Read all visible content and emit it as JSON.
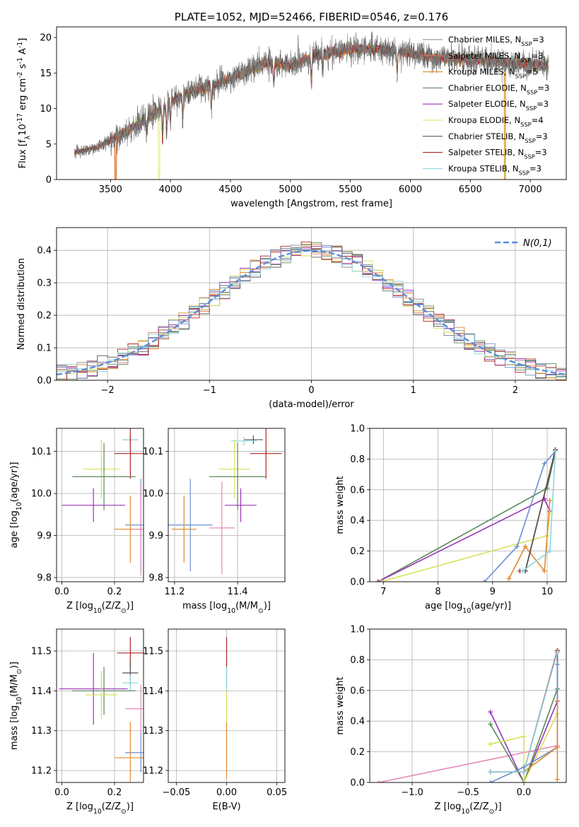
{
  "chart_data": [
    {
      "id": "spectrum",
      "type": "line",
      "title": "PLATE=1052, MJD=52466, FIBERID=0546, z=0.176",
      "xlabel": "wavelength [Angstrom, rest frame]",
      "ylabel": "Flux [f$_\\lambda$10$^{-17}$ erg cm$^{-2}$ s$^{-1}$ A$^{-1}$]",
      "xlim": [
        3050,
        7300
      ],
      "ylim": [
        0,
        21.5
      ],
      "xticks": [
        3500,
        4000,
        4500,
        5000,
        5500,
        6000,
        6500,
        7000
      ],
      "yticks": [
        0,
        5,
        10,
        15,
        20
      ],
      "grid": false,
      "legend_position": "top-right",
      "continuum": {
        "x": [
          3200,
          3400,
          3600,
          3800,
          4000,
          4200,
          4400,
          4600,
          4800,
          5000,
          5200,
          5400,
          5600,
          5800,
          6000,
          6200,
          6400,
          6600,
          6800,
          7000,
          7150
        ],
        "y": [
          3.8,
          4.6,
          6.5,
          8.5,
          11.0,
          12.6,
          13.5,
          15.0,
          16.5,
          16.0,
          17.5,
          18.0,
          18.5,
          18.2,
          17.8,
          17.2,
          17.0,
          16.8,
          16.5,
          16.2,
          16.0
        ]
      },
      "series": [
        {
          "name": "Chabrier MILES, N$_{SSP}$=3",
          "color": "#808080"
        },
        {
          "name": "Salpeter MILES, N$_{SSP}$=3",
          "color": "#e8734a"
        },
        {
          "name": "Kroupa MILES, N$_{SSP}$=5",
          "color": "#e08a2c"
        },
        {
          "name": "Chabrier ELODIE, N$_{SSP}$=3",
          "color": "#5b8a5b"
        },
        {
          "name": "Salpeter ELODIE, N$_{SSP}$=3",
          "color": "#9a32b8"
        },
        {
          "name": "Kroupa ELODIE, N$_{SSP}$=4",
          "color": "#d8e05a"
        },
        {
          "name": "Chabrier STELIB, N$_{SSP}$=3",
          "color": "#505050"
        },
        {
          "name": "Salpeter STELIB, N$_{SSP}$=3",
          "color": "#b22222"
        },
        {
          "name": "Kroupa STELIB, N$_{SSP}$=3",
          "color": "#8fd6e0"
        }
      ]
    },
    {
      "id": "residuals",
      "type": "histogram",
      "xlabel": "(data-model)/error",
      "ylabel": "Normed distribution",
      "xlim": [
        -2.5,
        2.5
      ],
      "ylim": [
        0,
        0.47
      ],
      "xticks": [
        -2,
        -1,
        0,
        1,
        2
      ],
      "yticks": [
        0.0,
        0.1,
        0.2,
        0.3,
        0.4
      ],
      "grid": true,
      "legend_position": "top-right",
      "reference_curve": {
        "name": "$\\mathcal{N}(0,1)$",
        "color": "#5b8fd9",
        "style": "dashed"
      },
      "bin_width": 0.1,
      "series_colors": [
        "#808080",
        "#e8734a",
        "#e08a2c",
        "#5b8a5b",
        "#9a32b8",
        "#d8e05a",
        "#505050",
        "#b22222",
        "#8fd6e0",
        "#6b8fd0"
      ]
    },
    {
      "id": "age_vs_Z",
      "type": "errorbar",
      "xlabel": "Z [log$_{10}$(Z/Z$_\\odot$)]",
      "ylabel": "age  [log$_{10}$(age/yr)]",
      "xlim": [
        -0.02,
        0.31
      ],
      "ylim": [
        9.79,
        10.155
      ],
      "xticks": [
        0.0,
        0.2
      ],
      "yticks": [
        9.8,
        9.9,
        10.0,
        10.1
      ],
      "grid": true,
      "points": [
        {
          "x": 0.26,
          "y": 10.128,
          "xerr": 0.03,
          "yerr": 0.01,
          "color": "#505050"
        },
        {
          "x": 0.26,
          "y": 10.128,
          "xerr": 0.03,
          "yerr": 0.01,
          "color": "#8fd6e0"
        },
        {
          "x": 0.26,
          "y": 10.095,
          "xerr": 0.06,
          "yerr": 0.06,
          "color": "#b22222"
        },
        {
          "x": 0.15,
          "y": 10.058,
          "xerr": 0.07,
          "yerr": 0.07,
          "color": "#d8e05a"
        },
        {
          "x": 0.16,
          "y": 10.04,
          "xerr": 0.12,
          "yerr": 0.08,
          "color": "#5b8a5b"
        },
        {
          "x": 0.12,
          "y": 9.972,
          "xerr": 0.12,
          "yerr": 0.04,
          "color": "#9a32b8"
        },
        {
          "x": 0.3,
          "y": 9.925,
          "xerr": 0.06,
          "yerr": 0.11,
          "color": "#6b8fd0"
        },
        {
          "x": 0.26,
          "y": 9.915,
          "xerr": 0.06,
          "yerr": 0.08,
          "color": "#e08a2c"
        },
        {
          "x": 0.3,
          "y": 9.915,
          "xerr": 0.03,
          "yerr": 0.11,
          "color": "#e888b8"
        }
      ]
    },
    {
      "id": "age_vs_mass",
      "type": "errorbar",
      "xlabel": "mass [log$_{10}$(M/M$_\\odot$)]",
      "xlim": [
        11.18,
        11.55
      ],
      "ylim": [
        9.79,
        10.155
      ],
      "xticks": [
        11.2,
        11.4
      ],
      "yticks": [
        9.8,
        9.9,
        10.0,
        10.1
      ],
      "grid": true,
      "points": [
        {
          "x": 11.45,
          "y": 10.128,
          "xerr": 0.03,
          "yerr": 0.01,
          "color": "#505050"
        },
        {
          "x": 11.42,
          "y": 10.125,
          "xerr": 0.04,
          "yerr": 0.01,
          "color": "#8fd6e0"
        },
        {
          "x": 11.49,
          "y": 10.095,
          "xerr": 0.05,
          "yerr": 0.06,
          "color": "#b22222"
        },
        {
          "x": 11.39,
          "y": 10.058,
          "xerr": 0.05,
          "yerr": 0.07,
          "color": "#d8e05a"
        },
        {
          "x": 11.4,
          "y": 10.04,
          "xerr": 0.09,
          "yerr": 0.08,
          "color": "#5b8a5b"
        },
        {
          "x": 11.41,
          "y": 9.972,
          "xerr": 0.05,
          "yerr": 0.04,
          "color": "#9a32b8"
        },
        {
          "x": 11.25,
          "y": 9.925,
          "xerr": 0.07,
          "yerr": 0.11,
          "color": "#6b8fd0"
        },
        {
          "x": 11.23,
          "y": 9.915,
          "xerr": 0.04,
          "yerr": 0.08,
          "color": "#e08a2c"
        },
        {
          "x": 11.35,
          "y": 9.918,
          "xerr": 0.04,
          "yerr": 0.11,
          "color": "#e888b8"
        }
      ]
    },
    {
      "id": "weight_vs_age",
      "type": "line",
      "xlabel": "age  [log$_{10}$(age/yr)]",
      "ylabel": "mass weight",
      "xlim": [
        6.75,
        10.35
      ],
      "ylim": [
        0,
        1.0
      ],
      "xticks": [
        7,
        8,
        9,
        10
      ],
      "yticks": [
        0.0,
        0.2,
        0.4,
        0.6,
        0.8,
        1.0
      ],
      "grid": true,
      "series": [
        {
          "color": "#5b8a5b",
          "x": [
            6.9,
            10.0,
            10.15
          ],
          "y": [
            0.0,
            0.61,
            0.85
          ]
        },
        {
          "color": "#9a32b8",
          "x": [
            6.9,
            9.95,
            10.05
          ],
          "y": [
            0.0,
            0.54,
            0.46
          ]
        },
        {
          "color": "#d8e05a",
          "x": [
            6.95,
            10.0,
            10.05
          ],
          "y": [
            0.0,
            0.3,
            0.45
          ]
        },
        {
          "color": "#6b8fd0",
          "x": [
            8.85,
            9.45,
            9.95,
            10.15
          ],
          "y": [
            0.0,
            0.23,
            0.77,
            0.85
          ]
        },
        {
          "color": "#e08a2c",
          "x": [
            9.3,
            9.6,
            9.95,
            10.05
          ],
          "y": [
            0.02,
            0.23,
            0.07,
            0.53
          ]
        },
        {
          "color": "#b22222",
          "x": [
            9.5,
            9.6,
            10.15
          ],
          "y": [
            0.07,
            0.07,
            0.86
          ]
        },
        {
          "color": "#505050",
          "x": [
            9.6,
            10.15
          ],
          "y": [
            0.07,
            0.86
          ]
        },
        {
          "color": "#8fd6e0",
          "x": [
            9.55,
            10.05,
            10.15
          ],
          "y": [
            0.07,
            0.2,
            0.85
          ]
        }
      ]
    },
    {
      "id": "mass_vs_Z",
      "type": "errorbar",
      "xlabel": "Z [log$_{10}$(Z/Z$_\\odot$)]",
      "ylabel": "mass [log$_{10}$(M/M$_\\odot$)]",
      "xlim": [
        -0.02,
        0.31
      ],
      "ylim": [
        11.17,
        11.555
      ],
      "xticks": [
        0.0,
        0.2
      ],
      "yticks": [
        11.2,
        11.3,
        11.4,
        11.5
      ],
      "grid": true,
      "points": [
        {
          "x": 0.26,
          "y": 11.495,
          "xerr": 0.05,
          "yerr": 0.04,
          "color": "#b22222"
        },
        {
          "x": 0.26,
          "y": 11.445,
          "xerr": 0.03,
          "yerr": 0.03,
          "color": "#505050"
        },
        {
          "x": 0.12,
          "y": 11.405,
          "xerr": 0.13,
          "yerr": 0.09,
          "color": "#9a32b8"
        },
        {
          "x": 0.26,
          "y": 11.42,
          "xerr": 0.03,
          "yerr": 0.02,
          "color": "#8fd6e0"
        },
        {
          "x": 0.16,
          "y": 11.4,
          "xerr": 0.12,
          "yerr": 0.06,
          "color": "#5b8a5b"
        },
        {
          "x": 0.15,
          "y": 11.39,
          "xerr": 0.06,
          "yerr": 0.06,
          "color": "#d8e05a"
        },
        {
          "x": 0.3,
          "y": 11.355,
          "xerr": 0.06,
          "yerr": 0.06,
          "color": "#e888b8"
        },
        {
          "x": 0.3,
          "y": 11.245,
          "xerr": 0.06,
          "yerr": 0.05,
          "color": "#6b8fd0"
        },
        {
          "x": 0.26,
          "y": 11.232,
          "xerr": 0.06,
          "yerr": 0.09,
          "color": "#e08a2c"
        }
      ]
    },
    {
      "id": "mass_vs_EBV",
      "type": "errorbar",
      "xlabel": "E(B-V)",
      "xlim": [
        -0.058,
        0.058
      ],
      "ylim": [
        11.17,
        11.555
      ],
      "xticks": [
        -0.05,
        0.0,
        0.05
      ],
      "yticks": [
        11.2,
        11.3,
        11.4,
        11.5
      ],
      "grid": true,
      "points": [
        {
          "x": 0.0,
          "y": 11.47,
          "xerr": 0.0,
          "yerr": 0.065,
          "color": "#b22222"
        },
        {
          "x": 0.0,
          "y": 11.4,
          "xerr": 0.0,
          "yerr": 0.06,
          "color": "#8fd6e0"
        },
        {
          "x": 0.0,
          "y": 11.35,
          "xerr": 0.0,
          "yerr": 0.05,
          "color": "#d8e05a"
        },
        {
          "x": 0.0,
          "y": 11.25,
          "xerr": 0.0,
          "yerr": 0.07,
          "color": "#e08a2c"
        }
      ]
    },
    {
      "id": "weight_vs_Z",
      "type": "line",
      "xlabel": "Z [log$_{10}$(Z/Z$_\\odot$)]",
      "ylabel": "mass weight",
      "xlim": [
        -1.38,
        0.38
      ],
      "ylim": [
        0,
        1.0
      ],
      "xticks": [
        -1.0,
        -0.5,
        0.0
      ],
      "yticks": [
        0.0,
        0.2,
        0.4,
        0.6,
        0.8,
        1.0
      ],
      "grid": true,
      "series": [
        {
          "color": "#e888b8",
          "x": [
            -1.3,
            0.3
          ],
          "y": [
            0.0,
            0.24
          ]
        },
        {
          "color": "#9a32b8",
          "x": [
            -0.3,
            0.0,
            0.3,
            0.3
          ],
          "y": [
            0.46,
            0.0,
            0.53,
            0.85
          ]
        },
        {
          "color": "#5b8a5b",
          "x": [
            -0.3,
            0.0,
            0.3,
            0.3
          ],
          "y": [
            0.38,
            0.0,
            0.61,
            0.85
          ]
        },
        {
          "color": "#d8e05a",
          "x": [
            -0.3,
            0.0,
            0.0,
            0.3
          ],
          "y": [
            0.25,
            0.3,
            0.0,
            0.45
          ]
        },
        {
          "color": "#6b8fd0",
          "x": [
            -0.3,
            0.0,
            0.3,
            0.3
          ],
          "y": [
            0.0,
            0.1,
            0.23,
            0.77
          ]
        },
        {
          "color": "#e08a2c",
          "x": [
            -0.3,
            0.0,
            0.3,
            0.3,
            0.3
          ],
          "y": [
            0.07,
            0.07,
            0.23,
            0.02,
            0.53
          ]
        },
        {
          "color": "#505050",
          "x": [
            -0.3,
            0.0,
            0.3
          ],
          "y": [
            0.07,
            0.07,
            0.86
          ]
        },
        {
          "color": "#b22222",
          "x": [
            -0.3,
            0.0,
            0.3
          ],
          "y": [
            0.07,
            0.07,
            0.86
          ]
        },
        {
          "color": "#8fd6e0",
          "x": [
            -0.3,
            0.0,
            0.3
          ],
          "y": [
            0.07,
            0.07,
            0.85
          ]
        }
      ]
    }
  ]
}
